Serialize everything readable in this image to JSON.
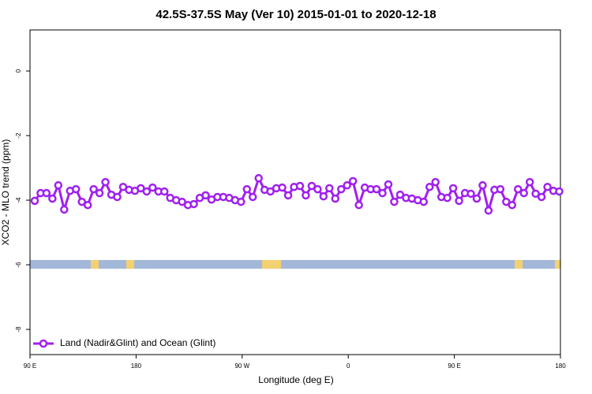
{
  "chart_data": {
    "type": "line",
    "title": "42.5S-37.5S May (Ver 10)   2015-01-01 to 2020-12-18",
    "x_label": "Longitude (deg E)",
    "y_label": "XCO2 - MLO trend (ppm)",
    "x": [
      94,
      99,
      104,
      109,
      114,
      119,
      124,
      129,
      134,
      139,
      144,
      149,
      154,
      159,
      164,
      169,
      174,
      179,
      184,
      189,
      194,
      199,
      204,
      209,
      214,
      219,
      224,
      229,
      234,
      239,
      244,
      249,
      254,
      259,
      264,
      269,
      274,
      279,
      284,
      289,
      294,
      299,
      304,
      309,
      314,
      319,
      324,
      329,
      334,
      339,
      344,
      349,
      354,
      359,
      364,
      369,
      374,
      379,
      384,
      389,
      394,
      399,
      404,
      409,
      414,
      419,
      424,
      429,
      434,
      439,
      444,
      449,
      454,
      459,
      464,
      469,
      474,
      479,
      484,
      489,
      494,
      499,
      504,
      509,
      514,
      519,
      524,
      529,
      534,
      539
    ],
    "series": [
      {
        "name": "Land (Nadir&Glint) and Ocean (Glint)",
        "color": "#a020f0",
        "values": [
          -4.02,
          -3.78,
          -3.78,
          -3.95,
          -3.54,
          -4.29,
          -3.71,
          -3.66,
          -4.05,
          -4.15,
          -3.66,
          -3.78,
          -3.44,
          -3.83,
          -3.9,
          -3.59,
          -3.68,
          -3.71,
          -3.63,
          -3.73,
          -3.61,
          -3.73,
          -3.73,
          -3.93,
          -4.0,
          -4.05,
          -4.15,
          -4.12,
          -3.93,
          -3.85,
          -3.98,
          -3.9,
          -3.9,
          -3.93,
          -4.0,
          -4.05,
          -3.66,
          -3.9,
          -3.32,
          -3.68,
          -3.73,
          -3.63,
          -3.61,
          -3.85,
          -3.59,
          -3.56,
          -3.85,
          -3.56,
          -3.66,
          -3.88,
          -3.63,
          -3.95,
          -3.66,
          -3.54,
          -3.41,
          -4.15,
          -3.61,
          -3.66,
          -3.66,
          -3.78,
          -3.51,
          -4.05,
          -3.83,
          -3.93,
          -3.95,
          -4.0,
          -4.05,
          -3.59,
          -3.44,
          -3.9,
          -3.93,
          -3.63,
          -4.02,
          -3.78,
          -3.8,
          -3.95,
          -3.54,
          -4.32,
          -3.68,
          -3.66,
          -4.05,
          -4.15,
          -3.66,
          -3.78,
          -3.44,
          -3.8,
          -3.9,
          -3.59,
          -3.71,
          -3.73
        ]
      }
    ],
    "xlim": [
      90,
      540
    ],
    "xticks": [
      {
        "value": 90,
        "label": "90 E"
      },
      {
        "value": 180,
        "label": "180"
      },
      {
        "value": 270,
        "label": "90 W"
      },
      {
        "value": 360,
        "label": "0"
      },
      {
        "value": 450,
        "label": "90 E"
      },
      {
        "value": 540,
        "label": "180"
      }
    ],
    "ylim": [
      -8.78,
      1.27
    ],
    "yticks": [
      0,
      -2,
      -4,
      -6,
      -8
    ],
    "legend": "bottom-left",
    "grid": false
  }
}
